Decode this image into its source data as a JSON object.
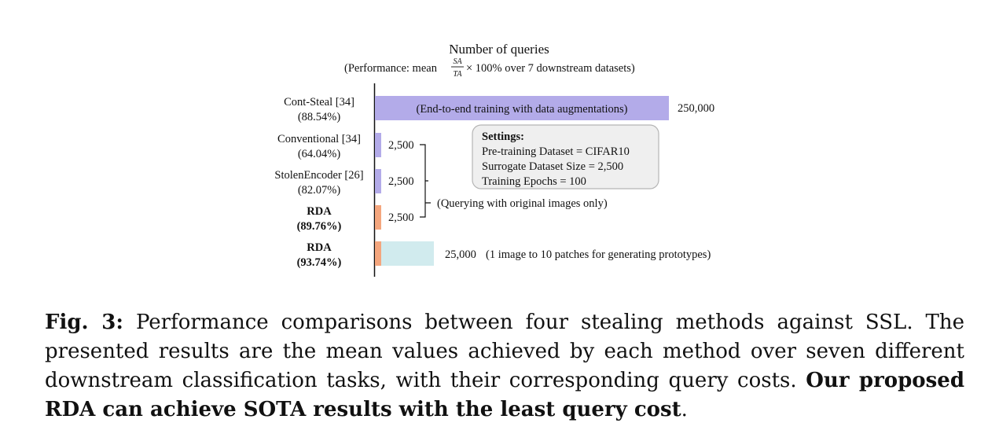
{
  "chart_data": {
    "type": "bar",
    "orientation": "horizontal",
    "title": "Number of queries",
    "subtitle_prefix": "(Performance: mean ",
    "subtitle_frac_num": "SA",
    "subtitle_frac_den": "TA",
    "subtitle_suffix": "× 100% over 7 downstream datasets)",
    "categories": [
      {
        "name": "Cont-Steal [34]",
        "perf": "(88.54%)",
        "bold": false,
        "value": 250000,
        "value_label": "250,000",
        "color": "#b3abe9",
        "inner_label": "(End-to-end training with data augmentations)"
      },
      {
        "name": "Conventional [34]",
        "perf": "(64.04%)",
        "bold": false,
        "value": 2500,
        "value_label": "2,500",
        "color": "#b3abe9"
      },
      {
        "name": "StolenEncoder [26]",
        "perf": "(82.07%)",
        "bold": false,
        "value": 2500,
        "value_label": "2,500",
        "color": "#b3abe9"
      },
      {
        "name": "RDA",
        "perf": "(89.76%)",
        "bold": true,
        "value": 2500,
        "value_label": "2,500",
        "color": "#f4a67e"
      },
      {
        "name": "RDA",
        "perf": "(93.74%)",
        "bold": true,
        "value": 25000,
        "value_label": "25,000",
        "color": "#f4a67e",
        "extension_color": "#d1ebee",
        "annotation": "(1 image to 10 patches for generating prototypes)"
      }
    ],
    "bracket_label": "(Querying with original images only)",
    "settings": {
      "title": "Settings:",
      "lines": [
        "Pre-training Dataset = CIFAR10",
        "Surrogate Dataset Size = 2,500",
        "Training Epochs = 100"
      ]
    }
  },
  "caption": {
    "fig_label": "Fig. 3:",
    "text": "Performance comparisons between four stealing methods against SSL. The presented results are the mean values achieved by each method over seven different downstream classification tasks, with their corresponding query costs.",
    "bold_text": "Our proposed RDA can achieve SOTA results with the least query cost",
    "end": "."
  }
}
